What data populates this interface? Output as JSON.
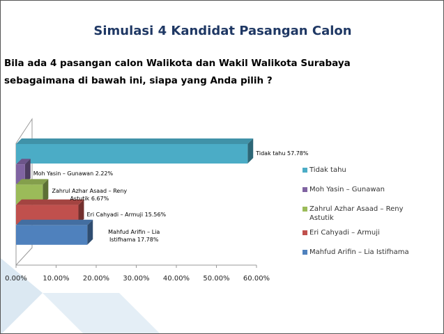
{
  "chart_data": {
    "type": "bar3d-horizontal",
    "title": "Simulasi 4 Kandidat Pasangan Calon",
    "subtitle": "Bila ada 4 pasangan calon Walikota dan Wakil Walikota Surabaya sebagaimana di bawah ini, siapa yang Anda pilih ?",
    "categories": [
      "Tidak tahu",
      "Moh Yasin – Gunawan",
      "Zahrul Azhar Asaad – Reny Astutik",
      "Eri Cahyadi – Armuji",
      "Mahfud Arifin – Lia Istifhama"
    ],
    "values": [
      57.78,
      2.22,
      6.67,
      15.56,
      17.78
    ],
    "value_labels": [
      "Tidak tahu 57.78%",
      "Moh Yasin – Gunawan 2.22%",
      "Zahrul Azhar Asaad – Reny Astutik 6.67%",
      "Eri Cahyadi – Armuji 15.56%",
      "Mahfud Arifin – Lia Istifhama 17.78%"
    ],
    "colors": [
      "#4bacc6",
      "#8064a2",
      "#9bbb59",
      "#c0504d",
      "#4f81bd"
    ],
    "xlim": [
      0,
      60
    ],
    "xticks": [
      {
        "value": 0,
        "label": "0.00%"
      },
      {
        "value": 10,
        "label": "10.00%"
      },
      {
        "value": 20,
        "label": "20.00%"
      },
      {
        "value": 30,
        "label": "30.00%"
      },
      {
        "value": 40,
        "label": "40.00%"
      },
      {
        "value": 50,
        "label": "50.00%"
      },
      {
        "value": 60,
        "label": "60.00%"
      }
    ],
    "legend": "right"
  }
}
